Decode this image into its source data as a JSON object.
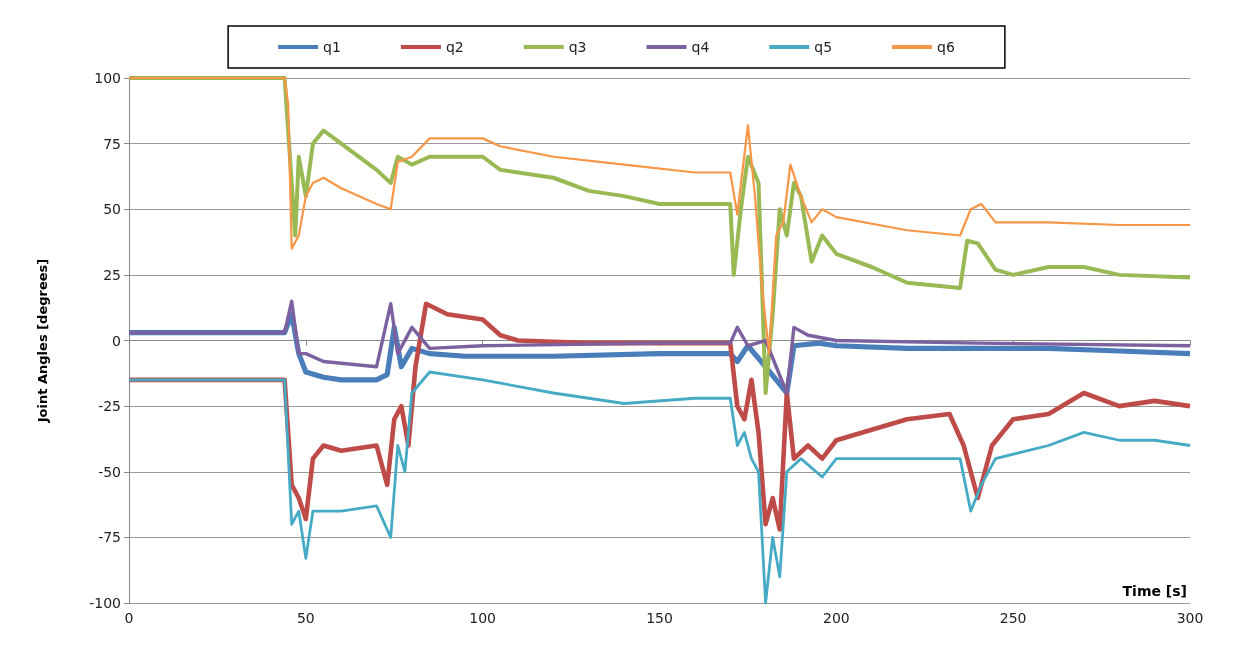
{
  "chart_data": {
    "type": "line",
    "xlabel": "Time [s]",
    "ylabel": "Joint Angles [degrees]",
    "xlim": [
      0,
      300
    ],
    "xticks": [
      0,
      50,
      100,
      150,
      200,
      250,
      300
    ],
    "ylim": [
      -100,
      100
    ],
    "yticks": [
      -100,
      -75,
      -50,
      -25,
      0,
      25,
      50,
      75,
      100
    ],
    "grid": "y",
    "legend": "top",
    "marker": "none",
    "line_style": "solid",
    "series": [
      {
        "name": "q1",
        "color": "#4a7ebb",
        "x": [
          0,
          44,
          46,
          48,
          50,
          55,
          60,
          70,
          73,
          75,
          77,
          80,
          85,
          95,
          100,
          120,
          150,
          170,
          172,
          175,
          180,
          183,
          186,
          188,
          195,
          200,
          220,
          240,
          260,
          280,
          300
        ],
        "values": [
          3,
          3,
          10,
          -5,
          -12,
          -14,
          -15,
          -15,
          -13,
          5,
          -10,
          -3,
          -5,
          -6,
          -6,
          -6,
          -5,
          -5,
          -8,
          -2,
          -10,
          -15,
          -20,
          -2,
          -1,
          -2,
          -3,
          -3,
          -3,
          -4,
          -5
        ]
      },
      {
        "name": "q2",
        "color": "#be4b48",
        "x": [
          0,
          44,
          46,
          48,
          50,
          52,
          55,
          60,
          70,
          73,
          75,
          77,
          79,
          81,
          84,
          90,
          100,
          105,
          110,
          130,
          150,
          170,
          172,
          174,
          176,
          178,
          180,
          182,
          184,
          186,
          188,
          192,
          196,
          200,
          220,
          232,
          236,
          240,
          244,
          250,
          260,
          270,
          280,
          290,
          300
        ],
        "values": [
          -15,
          -15,
          -55,
          -60,
          -68,
          -45,
          -40,
          -42,
          -40,
          -55,
          -30,
          -25,
          -40,
          -10,
          14,
          10,
          8,
          2,
          0,
          -1,
          -1,
          -1,
          -25,
          -30,
          -15,
          -35,
          -70,
          -60,
          -72,
          -20,
          -45,
          -40,
          -45,
          -38,
          -30,
          -28,
          -40,
          -60,
          -40,
          -30,
          -28,
          -20,
          -25,
          -23,
          -25
        ]
      },
      {
        "name": "q3",
        "color": "#98b954",
        "x": [
          0,
          44,
          46,
          47,
          48,
          50,
          52,
          55,
          60,
          70,
          74,
          76,
          80,
          85,
          100,
          105,
          120,
          130,
          140,
          150,
          170,
          171,
          173,
          175,
          178,
          180,
          182,
          184,
          186,
          188,
          190,
          193,
          196,
          200,
          210,
          220,
          235,
          237,
          240,
          245,
          250,
          260,
          270,
          280,
          300
        ],
        "values": [
          100,
          100,
          60,
          40,
          70,
          55,
          75,
          80,
          75,
          65,
          60,
          70,
          67,
          70,
          70,
          65,
          62,
          57,
          55,
          52,
          52,
          25,
          50,
          70,
          60,
          -20,
          10,
          50,
          40,
          60,
          55,
          30,
          40,
          33,
          28,
          22,
          20,
          38,
          37,
          27,
          25,
          28,
          28,
          25,
          24
        ]
      },
      {
        "name": "q4",
        "color": "#7d60a0",
        "x": [
          0,
          44,
          46,
          48,
          50,
          55,
          70,
          74,
          76,
          80,
          85,
          100,
          150,
          170,
          172,
          175,
          180,
          183,
          186,
          188,
          192,
          200,
          240,
          300
        ],
        "values": [
          3,
          3,
          15,
          -5,
          -5,
          -8,
          -10,
          14,
          -5,
          5,
          -3,
          -2,
          -1,
          -1,
          5,
          -2,
          0,
          -10,
          -20,
          5,
          2,
          0,
          -1,
          -2
        ]
      },
      {
        "name": "q5",
        "color": "#46aac5",
        "x": [
          0,
          44,
          46,
          48,
          50,
          52,
          60,
          70,
          74,
          76,
          78,
          80,
          85,
          100,
          120,
          140,
          160,
          170,
          172,
          174,
          176,
          178,
          180,
          182,
          184,
          186,
          190,
          196,
          200,
          220,
          235,
          238,
          241,
          245,
          260,
          270,
          280,
          290,
          300
        ],
        "values": [
          -15,
          -15,
          -70,
          -65,
          -83,
          -65,
          -65,
          -63,
          -75,
          -40,
          -50,
          -20,
          -12,
          -15,
          -20,
          -24,
          -22,
          -22,
          -40,
          -35,
          -45,
          -50,
          -100,
          -75,
          -90,
          -50,
          -45,
          -52,
          -45,
          -45,
          -45,
          -65,
          -55,
          -45,
          -40,
          -35,
          -38,
          -38,
          -40
        ]
      },
      {
        "name": "q6",
        "color": "#f79646",
        "x": [
          0,
          44,
          45,
          46,
          48,
          50,
          52,
          55,
          60,
          70,
          74,
          76,
          80,
          85,
          100,
          105,
          120,
          140,
          160,
          170,
          172,
          175,
          177,
          179,
          181,
          183,
          185,
          187,
          190,
          193,
          196,
          200,
          220,
          235,
          238,
          241,
          245,
          260,
          280,
          300
        ],
        "values": [
          100,
          100,
          90,
          35,
          40,
          55,
          60,
          62,
          58,
          52,
          50,
          68,
          70,
          77,
          77,
          74,
          70,
          67,
          64,
          64,
          48,
          82,
          55,
          20,
          -5,
          40,
          45,
          67,
          55,
          45,
          50,
          47,
          42,
          40,
          50,
          52,
          45,
          45,
          44,
          44
        ]
      }
    ]
  }
}
